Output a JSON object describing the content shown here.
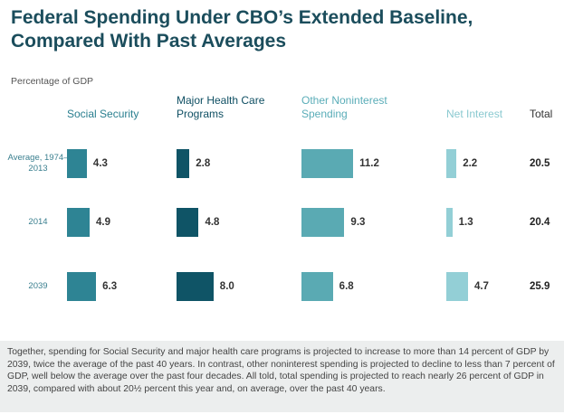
{
  "chart_data": {
    "type": "bar",
    "title": "Federal Spending Under CBO’s Extended Baseline, Compared With Past Averages",
    "subtitle": "Percentage of GDP",
    "categories": [
      "Average, 1974–2013",
      "2014",
      "2039"
    ],
    "series": [
      {
        "name": "Social Security",
        "color": "#2e8494",
        "values": [
          4.3,
          4.9,
          6.3
        ]
      },
      {
        "name": "Major Health Care Programs",
        "color": "#0f5466",
        "values": [
          2.8,
          4.8,
          8
        ],
        "value_labels": [
          "2.8",
          "4.8",
          "8.0"
        ]
      },
      {
        "name": "Other Noninterest Spending",
        "color": "#5aaab3",
        "values": [
          11.2,
          9.3,
          6.8
        ]
      },
      {
        "name": "Net Interest",
        "color": "#93cfd6",
        "values": [
          2.2,
          1.3,
          4.7
        ]
      }
    ],
    "total": {
      "name": "Total",
      "values": [
        20.5,
        20.4,
        25.9
      ]
    },
    "note": "Together, spending for Social Security and major health care programs is projected to increase to more than 14 percent of GDP by 2039, twice the average of the past 40 years. In contrast, other noninterest spending is projected to decline to less than 7 percent of GDP, well below the average over the past four decades. All told, total spending is projected to reach nearly 26 percent of GDP in 2039, compared with about 20½ percent this year and, on average, over the past 40 years."
  }
}
